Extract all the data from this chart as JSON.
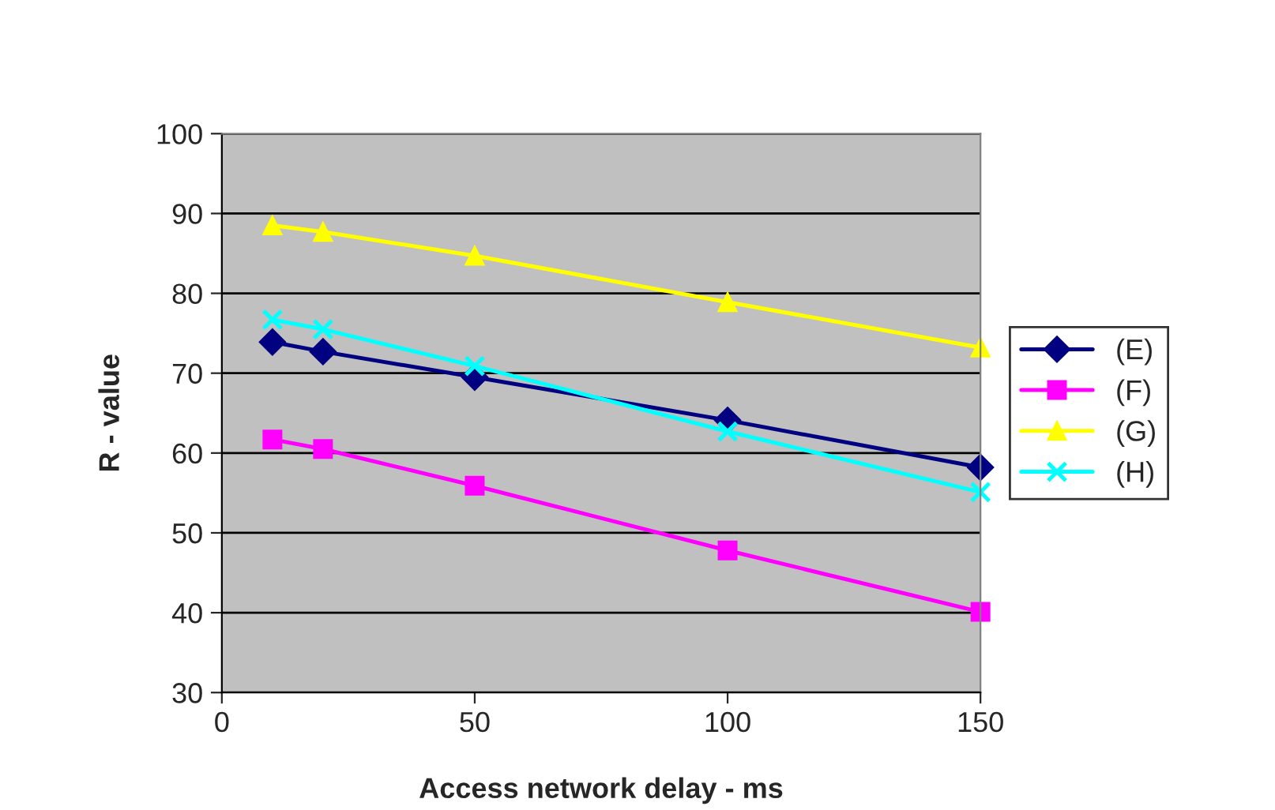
{
  "chart_data": {
    "type": "line",
    "xlabel": "Access network delay - ms",
    "ylabel": "R - value",
    "x": [
      10,
      20,
      50,
      100,
      150
    ],
    "series": [
      {
        "name": "(E)",
        "color": "#000080",
        "marker": "diamond",
        "values": [
          73.9,
          72.7,
          69.5,
          64.1,
          58.2
        ]
      },
      {
        "name": "(F)",
        "color": "#ff00ff",
        "marker": "square",
        "values": [
          61.7,
          60.5,
          55.9,
          47.8,
          40.1
        ]
      },
      {
        "name": "(G)",
        "color": "#ffff00",
        "marker": "triangle",
        "values": [
          88.5,
          87.7,
          84.7,
          78.9,
          73.2
        ]
      },
      {
        "name": "(H)",
        "color": "#00ffff",
        "marker": "cross",
        "values": [
          76.7,
          75.5,
          70.9,
          62.7,
          55.1
        ]
      }
    ],
    "xlim": [
      0,
      150
    ],
    "xticks": [
      0,
      50,
      100,
      150
    ],
    "ylim": [
      30,
      100
    ],
    "yticks": [
      30,
      40,
      50,
      60,
      70,
      80,
      90,
      100
    ],
    "grid": "y",
    "legend": "right"
  }
}
